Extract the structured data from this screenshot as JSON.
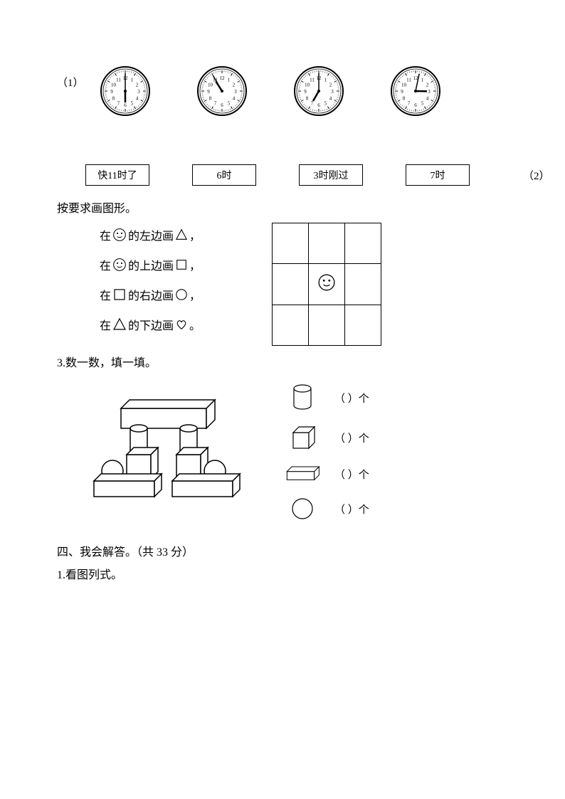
{
  "q1": {
    "label": "（1）",
    "clocks": [
      {
        "hour": 6,
        "minute": 0
      },
      {
        "hour": 10,
        "minute": 55
      },
      {
        "hour": 7,
        "minute": 0
      },
      {
        "hour": 3,
        "minute": 2
      }
    ],
    "labels": [
      "快11时了",
      "6时",
      "3时刚过",
      "7时"
    ],
    "clock_style": {
      "radius": 36,
      "face_fill": "#ffffff",
      "stroke": "#000000",
      "tick_color": "#000000",
      "number_fontsize": 7
    }
  },
  "q2": {
    "label": "（2）",
    "title": "按要求画图形。",
    "lines": [
      {
        "prefix": "在",
        "icon": "smiley",
        "mid": "的左边画",
        "shape": "triangle",
        "suffix": "，"
      },
      {
        "prefix": "在",
        "icon": "smiley",
        "mid": "的上边画",
        "shape": "square",
        "suffix": "，"
      },
      {
        "prefix": "在",
        "icon": "square",
        "mid": "的右边画",
        "shape": "circle",
        "suffix": "，"
      },
      {
        "prefix": "在",
        "icon": "triangle",
        "mid": "的下边画",
        "shape": "heart",
        "suffix": "。"
      }
    ],
    "grid": {
      "rows": 3,
      "cols": 3,
      "cell_size": 48,
      "border_color": "#000000",
      "smiley_cell": {
        "row": 1,
        "col": 1
      }
    }
  },
  "q3": {
    "title": "3.数一数，填一填。",
    "count_rows": [
      {
        "shape": "cylinder",
        "text": "（      ）个"
      },
      {
        "shape": "cube",
        "text": "（      ）个"
      },
      {
        "shape": "cuboid",
        "text": "（      ）个"
      },
      {
        "shape": "sphere",
        "text": "（      ）个"
      }
    ]
  },
  "section4": {
    "heading": "四、我会解答。（共 33 分）",
    "sub": "1.看图列式。"
  },
  "colors": {
    "text": "#000000",
    "background": "#ffffff",
    "stroke": "#000000"
  }
}
